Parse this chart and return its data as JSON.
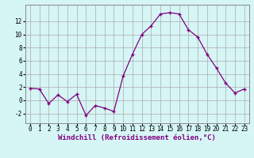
{
  "x": [
    0,
    1,
    2,
    3,
    4,
    5,
    6,
    7,
    8,
    9,
    10,
    11,
    12,
    13,
    14,
    15,
    16,
    17,
    18,
    19,
    20,
    21,
    22,
    23
  ],
  "y": [
    1.8,
    1.7,
    -0.5,
    0.8,
    -0.2,
    0.9,
    -2.3,
    -0.8,
    -1.2,
    -1.7,
    3.7,
    7.0,
    10.0,
    11.3,
    13.1,
    13.3,
    13.1,
    10.7,
    9.6,
    7.0,
    4.9,
    2.6,
    1.1,
    1.7
  ],
  "line_color": "#800080",
  "marker_color": "#800080",
  "bg_color": "#d6f5f5",
  "grid_color": "#aaaaaa",
  "xlabel": "Windchill (Refroidissement éolien,°C)",
  "xlim": [
    -0.5,
    23.5
  ],
  "ylim": [
    -3.5,
    14.5
  ],
  "yticks": [
    -2,
    0,
    2,
    4,
    6,
    8,
    10,
    12
  ],
  "xticks": [
    0,
    1,
    2,
    3,
    4,
    5,
    6,
    7,
    8,
    9,
    10,
    11,
    12,
    13,
    14,
    15,
    16,
    17,
    18,
    19,
    20,
    21,
    22,
    23
  ],
  "tick_fontsize": 5.5,
  "xlabel_fontsize": 6.5
}
